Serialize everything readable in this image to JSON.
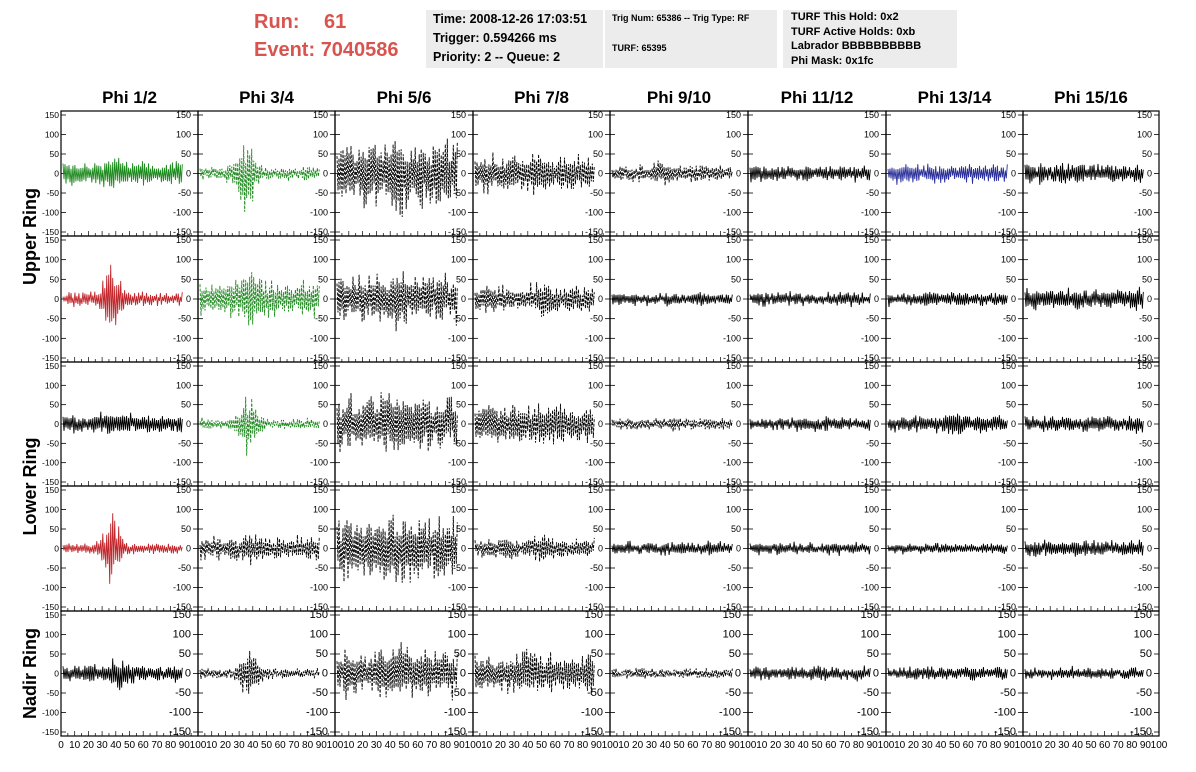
{
  "header": {
    "run_label": "Run:",
    "run_value": "61",
    "event_label": "Event:",
    "event_value": "7040586",
    "time_line": "Time: 2008-12-26 17:03:51",
    "trigger_line": "Trigger: 0.594266 ms",
    "priority_line": "Priority: 2 -- Queue: 2",
    "trig_num_line": "Trig Num: 65386 -- Trig Type: RF",
    "turf_line": "TURF: 65395",
    "turf_hold_line": "TURF This Hold: 0x2",
    "turf_active_line": "TURF Active Holds: 0xb",
    "labrador_line": "Labrador BBBBBBBBBB",
    "phi_mask_line": "Phi Mask: 0x1fc"
  },
  "colors": {
    "header_red": "#d9534f",
    "box_bg": "#ececec",
    "trace_black": "#000000",
    "trace_green": "#1f8a1f",
    "trace_red": "#c0282d",
    "trace_blue": "#2a2f9a"
  },
  "chart_data": {
    "type": "line",
    "title": "",
    "columns": [
      "Phi 1/2",
      "Phi 3/4",
      "Phi 5/6",
      "Phi 7/8",
      "Phi 9/10",
      "Phi 11/12",
      "Phi 13/14",
      "Phi 15/16"
    ],
    "ring_labels": [
      "Upper Ring",
      "Lower Ring",
      "Nadir Ring"
    ],
    "xlim": [
      0,
      100
    ],
    "ylim": [
      -150,
      150
    ],
    "x_ticks": [
      "0",
      "10",
      "20",
      "30",
      "40",
      "50",
      "60",
      "70",
      "80",
      "90",
      "100"
    ],
    "y_ticks": [
      "150",
      "100",
      "50",
      "0",
      "-50",
      "-100",
      "-150"
    ],
    "grid": false,
    "panels": [
      [
        {
          "color": "green",
          "style": "solid",
          "amplitude": 35,
          "burst_center": 40,
          "burst_amp": 25
        },
        {
          "color": "green",
          "style": "dashed",
          "amplitude": 20,
          "burst_center": 38,
          "burst_amp": 95
        },
        {
          "color": "black",
          "style": "dashed",
          "amplitude": 95,
          "burst_center": 50,
          "burst_amp": 40
        },
        {
          "color": "black",
          "style": "dashed",
          "amplitude": 55,
          "burst_center": 50,
          "burst_amp": 10
        },
        {
          "color": "black",
          "style": "dashed",
          "amplitude": 25,
          "burst_center": 40,
          "burst_amp": 15
        },
        {
          "color": "black",
          "style": "solid",
          "amplitude": 22,
          "burst_center": 50,
          "burst_amp": 0
        },
        {
          "color": "blue",
          "style": "solid",
          "amplitude": 30,
          "burst_center": 50,
          "burst_amp": 0
        },
        {
          "color": "black",
          "style": "solid",
          "amplitude": 30,
          "burst_center": 50,
          "burst_amp": 0
        }
      ],
      [
        {
          "color": "red",
          "style": "solid",
          "amplitude": 20,
          "burst_center": 40,
          "burst_amp": 90
        },
        {
          "color": "green",
          "style": "dashed",
          "amplitude": 55,
          "burst_center": 40,
          "burst_amp": 40
        },
        {
          "color": "black",
          "style": "dashed",
          "amplitude": 70,
          "burst_center": 50,
          "burst_amp": 30
        },
        {
          "color": "black",
          "style": "dashed",
          "amplitude": 40,
          "burst_center": 55,
          "burst_amp": 20
        },
        {
          "color": "black",
          "style": "solid",
          "amplitude": 18,
          "burst_center": 50,
          "burst_amp": 0
        },
        {
          "color": "black",
          "style": "solid",
          "amplitude": 20,
          "burst_center": 50,
          "burst_amp": 0
        },
        {
          "color": "black",
          "style": "solid",
          "amplitude": 20,
          "burst_center": 50,
          "burst_amp": 0
        },
        {
          "color": "black",
          "style": "solid",
          "amplitude": 30,
          "burst_center": 50,
          "burst_amp": 0
        }
      ],
      [
        {
          "color": "black",
          "style": "solid",
          "amplitude": 28,
          "burst_center": 40,
          "burst_amp": 15
        },
        {
          "color": "green",
          "style": "dashed",
          "amplitude": 15,
          "burst_center": 40,
          "burst_amp": 85
        },
        {
          "color": "black",
          "style": "dashed",
          "amplitude": 85,
          "burst_center": 50,
          "burst_amp": 20
        },
        {
          "color": "black",
          "style": "dashed",
          "amplitude": 60,
          "burst_center": 50,
          "burst_amp": 10
        },
        {
          "color": "black",
          "style": "dashed",
          "amplitude": 18,
          "burst_center": 50,
          "burst_amp": 8
        },
        {
          "color": "black",
          "style": "solid",
          "amplitude": 20,
          "burst_center": 50,
          "burst_amp": 0
        },
        {
          "color": "black",
          "style": "solid",
          "amplitude": 25,
          "burst_center": 55,
          "burst_amp": 15
        },
        {
          "color": "black",
          "style": "solid",
          "amplitude": 25,
          "burst_center": 50,
          "burst_amp": 0
        }
      ],
      [
        {
          "color": "red",
          "style": "solid",
          "amplitude": 15,
          "burst_center": 40,
          "burst_amp": 90
        },
        {
          "color": "black",
          "style": "dashed",
          "amplitude": 35,
          "burst_center": 40,
          "burst_amp": 15
        },
        {
          "color": "black",
          "style": "dashed",
          "amplitude": 90,
          "burst_center": 50,
          "burst_amp": 30
        },
        {
          "color": "black",
          "style": "dashed",
          "amplitude": 30,
          "burst_center": 55,
          "burst_amp": 15
        },
        {
          "color": "black",
          "style": "solid",
          "amplitude": 20,
          "burst_center": 50,
          "burst_amp": 0
        },
        {
          "color": "black",
          "style": "solid",
          "amplitude": 18,
          "burst_center": 50,
          "burst_amp": 0
        },
        {
          "color": "black",
          "style": "solid",
          "amplitude": 15,
          "burst_center": 50,
          "burst_amp": 0
        },
        {
          "color": "black",
          "style": "solid",
          "amplitude": 25,
          "burst_center": 50,
          "burst_amp": 0
        }
      ],
      [
        {
          "color": "black",
          "style": "solid",
          "amplitude": 25,
          "burst_center": 45,
          "burst_amp": 25
        },
        {
          "color": "black",
          "style": "dashed",
          "amplitude": 15,
          "burst_center": 40,
          "burst_amp": 70
        },
        {
          "color": "black",
          "style": "dashed",
          "amplitude": 70,
          "burst_center": 50,
          "burst_amp": 30
        },
        {
          "color": "black",
          "style": "dashed",
          "amplitude": 60,
          "burst_center": 45,
          "burst_amp": 15
        },
        {
          "color": "black",
          "style": "dashed",
          "amplitude": 15,
          "burst_center": 50,
          "burst_amp": 0
        },
        {
          "color": "black",
          "style": "solid",
          "amplitude": 20,
          "burst_center": 50,
          "burst_amp": 0
        },
        {
          "color": "black",
          "style": "solid",
          "amplitude": 20,
          "burst_center": 50,
          "burst_amp": 0
        },
        {
          "color": "black",
          "style": "solid",
          "amplitude": 18,
          "burst_center": 50,
          "burst_amp": 0
        }
      ]
    ]
  }
}
